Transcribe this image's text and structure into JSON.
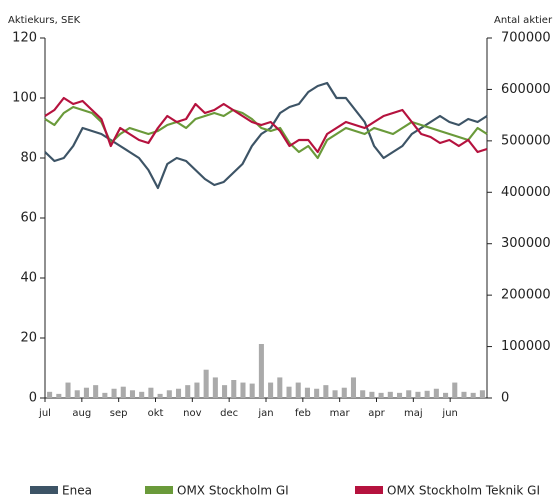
{
  "chart_data": {
    "type": "line",
    "y_label": "Aktiekurs, SEK",
    "y2_label": "Antal aktier",
    "xlim": [
      0,
      12
    ],
    "xticks": [
      {
        "value": 0,
        "label": "jul"
      },
      {
        "value": 1,
        "label": "aug"
      },
      {
        "value": 2,
        "label": "sep"
      },
      {
        "value": 3,
        "label": "okt"
      },
      {
        "value": 4,
        "label": "nov"
      },
      {
        "value": 5,
        "label": "dec"
      },
      {
        "value": 6,
        "label": "jan"
      },
      {
        "value": 7,
        "label": "feb"
      },
      {
        "value": 8,
        "label": "mar"
      },
      {
        "value": 9,
        "label": "apr"
      },
      {
        "value": 10,
        "label": "maj"
      },
      {
        "value": 11,
        "label": "jun"
      }
    ],
    "ylim": [
      0,
      120
    ],
    "yticks": [
      0,
      20,
      40,
      60,
      80,
      100,
      120
    ],
    "y2lim": [
      0,
      700000
    ],
    "y2ticks": [
      0,
      100000,
      200000,
      300000,
      400000,
      500000,
      600000,
      700000
    ],
    "series": [
      {
        "name": "Enea",
        "color": "#3d5466",
        "values": [
          82,
          79,
          80,
          84,
          90,
          89,
          88,
          86,
          84,
          82,
          80,
          76,
          70,
          78,
          80,
          79,
          76,
          73,
          71,
          72,
          75,
          78,
          84,
          88,
          90,
          95,
          97,
          98,
          102,
          104,
          105,
          100,
          100,
          96,
          92,
          84,
          80,
          82,
          84,
          88,
          90,
          92,
          94,
          92,
          91,
          93,
          92,
          94
        ]
      },
      {
        "name": "OMX Stockholm GI",
        "color": "#6a9a3a",
        "values": [
          93,
          91,
          95,
          97,
          96,
          95,
          92,
          85,
          88,
          90,
          89,
          88,
          89,
          91,
          92,
          90,
          93,
          94,
          95,
          94,
          96,
          95,
          93,
          90,
          89,
          90,
          85,
          82,
          84,
          80,
          86,
          88,
          90,
          89,
          88,
          90,
          89,
          88,
          90,
          92,
          91,
          90,
          89,
          88,
          87,
          86,
          90,
          88
        ]
      },
      {
        "name": "OMX Stockholm Teknik GI",
        "color": "#b5123e",
        "values": [
          94,
          96,
          100,
          98,
          99,
          96,
          93,
          84,
          90,
          88,
          86,
          85,
          90,
          94,
          92,
          93,
          98,
          95,
          96,
          98,
          96,
          94,
          92,
          91,
          92,
          89,
          84,
          86,
          86,
          82,
          88,
          90,
          92,
          91,
          90,
          92,
          94,
          95,
          96,
          92,
          88,
          87,
          85,
          86,
          84,
          86,
          82,
          83
        ]
      },
      {
        "name": null,
        "color": "#aaaaaa",
        "axis": "y2",
        "bar": true,
        "values": [
          12000,
          8000,
          30000,
          15000,
          20000,
          25000,
          10000,
          18000,
          22000,
          15000,
          12000,
          20000,
          8000,
          15000,
          18000,
          25000,
          30000,
          55000,
          40000,
          25000,
          35000,
          30000,
          28000,
          105000,
          30000,
          40000,
          22000,
          30000,
          20000,
          18000,
          25000,
          15000,
          20000,
          40000,
          15000,
          12000,
          10000,
          12000,
          10000,
          15000,
          12000,
          14000,
          18000,
          10000,
          30000,
          12000,
          10000,
          15000
        ]
      }
    ]
  }
}
